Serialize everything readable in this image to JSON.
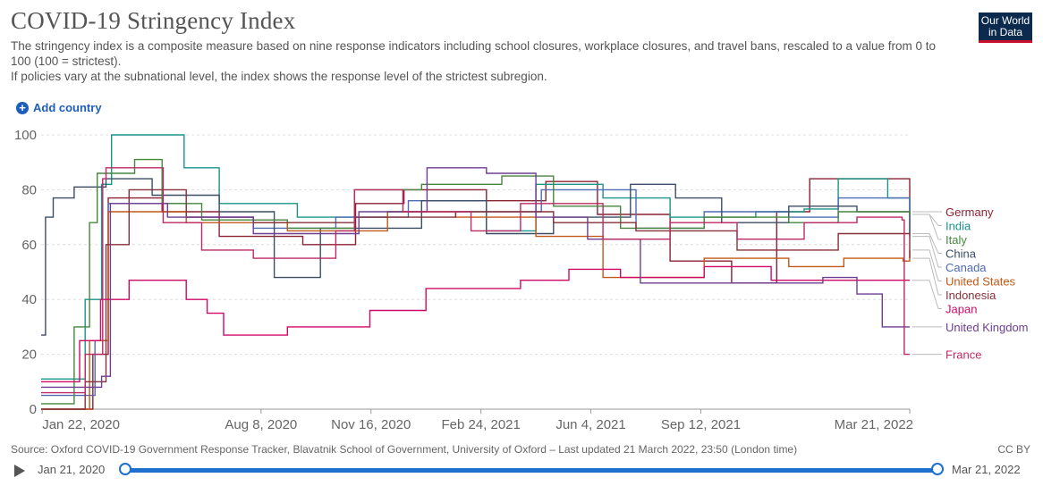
{
  "header": {
    "title": "COVID-19 Stringency Index",
    "subtitle_line1": "The stringency index is a composite measure based on nine response indicators including school closures, workplace closures, and travel bans, rescaled to a value from 0 to 100 (100 = strictest).",
    "subtitle_line2": "If policies vary at the subnational level, the index shows the response level of the strictest subregion.",
    "logo_line1": "Our World",
    "logo_line2": "in Data"
  },
  "controls": {
    "add_country_label": "Add country"
  },
  "footer": {
    "source": "Source: Oxford COVID-19 Government Response Tracker, Blavatnik School of Government, University of Oxford – Last updated 21 March 2022, 23:50 (London time)",
    "license": "CC BY"
  },
  "timeline": {
    "start_label": "Jan 21, 2020",
    "end_label": "Mar 21, 2022"
  },
  "chart_data": {
    "type": "line",
    "title": "COVID-19 Stringency Index",
    "xlabel": "",
    "ylabel": "",
    "x_range": [
      "2020-01-21",
      "2022-03-21"
    ],
    "ylim": [
      0,
      100
    ],
    "y_ticks": [
      0,
      20,
      40,
      60,
      80,
      100
    ],
    "x_ticks": [
      {
        "date": "2020-01-22",
        "label": "Jan 22, 2020"
      },
      {
        "date": "2020-08-08",
        "label": "Aug 8, 2020"
      },
      {
        "date": "2020-11-16",
        "label": "Nov 16, 2020"
      },
      {
        "date": "2021-02-24",
        "label": "Feb 24, 2021"
      },
      {
        "date": "2021-06-04",
        "label": "Jun 4, 2021"
      },
      {
        "date": "2021-09-12",
        "label": "Sep 12, 2021"
      },
      {
        "date": "2022-03-21",
        "label": "Mar 21, 2022"
      }
    ],
    "grid": "horizontal-dashed",
    "legend": "right-end-labels",
    "series": [
      {
        "name": "Germany",
        "color": "#8b2232",
        "points": [
          [
            "2020-01-21",
            0
          ],
          [
            "2020-03-08",
            20
          ],
          [
            "2020-03-22",
            77
          ],
          [
            "2020-05-10",
            72
          ],
          [
            "2020-07-01",
            63
          ],
          [
            "2020-09-15",
            60
          ],
          [
            "2020-11-02",
            75
          ],
          [
            "2020-12-16",
            80
          ],
          [
            "2021-03-01",
            76
          ],
          [
            "2021-04-24",
            83
          ],
          [
            "2021-06-10",
            71
          ],
          [
            "2021-08-15",
            54
          ],
          [
            "2021-10-10",
            46
          ],
          [
            "2021-11-20",
            72
          ],
          [
            "2021-12-20",
            84
          ],
          [
            "2022-03-01",
            84
          ],
          [
            "2022-03-21",
            72
          ]
        ]
      },
      {
        "name": "India",
        "color": "#1a9489",
        "points": [
          [
            "2020-01-21",
            11
          ],
          [
            "2020-03-01",
            40
          ],
          [
            "2020-03-16",
            82
          ],
          [
            "2020-03-25",
            100
          ],
          [
            "2020-05-01",
            100
          ],
          [
            "2020-05-30",
            88
          ],
          [
            "2020-07-01",
            75
          ],
          [
            "2020-09-10",
            70
          ],
          [
            "2020-12-01",
            72
          ],
          [
            "2021-03-01",
            65
          ],
          [
            "2021-04-15",
            82
          ],
          [
            "2021-06-15",
            77
          ],
          [
            "2021-08-15",
            70
          ],
          [
            "2021-11-01",
            72
          ],
          [
            "2021-12-15",
            73
          ],
          [
            "2022-01-15",
            84
          ],
          [
            "2022-03-01",
            77
          ],
          [
            "2022-03-21",
            71
          ]
        ]
      },
      {
        "name": "Canada",
        "color": "#4e6bb3",
        "points": [
          [
            "2020-01-21",
            5
          ],
          [
            "2020-03-10",
            25
          ],
          [
            "2020-03-22",
            75
          ],
          [
            "2020-06-01",
            70
          ],
          [
            "2020-08-01",
            66
          ],
          [
            "2020-10-15",
            70
          ],
          [
            "2020-12-20",
            76
          ],
          [
            "2021-03-01",
            72
          ],
          [
            "2021-04-20",
            80
          ],
          [
            "2021-07-15",
            66
          ],
          [
            "2021-09-15",
            72
          ],
          [
            "2021-12-01",
            70
          ],
          [
            "2022-01-15",
            77
          ],
          [
            "2022-03-21",
            63
          ]
        ]
      },
      {
        "name": "China",
        "color": "#3c4e66",
        "points": [
          [
            "2020-01-21",
            27
          ],
          [
            "2020-01-25",
            70
          ],
          [
            "2020-02-01",
            77
          ],
          [
            "2020-02-20",
            81
          ],
          [
            "2020-03-20",
            84
          ],
          [
            "2020-05-01",
            78
          ],
          [
            "2020-07-01",
            72
          ],
          [
            "2020-08-20",
            48
          ],
          [
            "2020-10-01",
            66
          ],
          [
            "2021-01-01",
            76
          ],
          [
            "2021-03-01",
            64
          ],
          [
            "2021-05-01",
            70
          ],
          [
            "2021-07-10",
            82
          ],
          [
            "2021-08-20",
            77
          ],
          [
            "2021-10-01",
            68
          ],
          [
            "2021-12-01",
            74
          ],
          [
            "2022-02-01",
            72
          ],
          [
            "2022-03-21",
            64
          ]
        ]
      },
      {
        "name": "Italy",
        "color": "#46873e",
        "points": [
          [
            "2020-01-21",
            2
          ],
          [
            "2020-02-20",
            30
          ],
          [
            "2020-03-05",
            68
          ],
          [
            "2020-03-12",
            86
          ],
          [
            "2020-04-15",
            91
          ],
          [
            "2020-05-10",
            75
          ],
          [
            "2020-06-15",
            69
          ],
          [
            "2020-09-01",
            66
          ],
          [
            "2020-11-01",
            80
          ],
          [
            "2021-01-01",
            82
          ],
          [
            "2021-03-15",
            85
          ],
          [
            "2021-05-01",
            74
          ],
          [
            "2021-07-01",
            66
          ],
          [
            "2021-09-15",
            70
          ],
          [
            "2021-12-01",
            68
          ],
          [
            "2022-01-15",
            72
          ],
          [
            "2022-03-21",
            71
          ]
        ]
      },
      {
        "name": "United States",
        "color": "#c05917",
        "points": [
          [
            "2020-01-21",
            0
          ],
          [
            "2020-03-05",
            25
          ],
          [
            "2020-03-22",
            72
          ],
          [
            "2020-06-01",
            68
          ],
          [
            "2020-09-01",
            65
          ],
          [
            "2020-12-01",
            72
          ],
          [
            "2021-02-01",
            70
          ],
          [
            "2021-04-15",
            63
          ],
          [
            "2021-06-15",
            48
          ],
          [
            "2021-09-15",
            55
          ],
          [
            "2021-12-01",
            52
          ],
          [
            "2022-01-20",
            55
          ],
          [
            "2022-03-15",
            54
          ],
          [
            "2022-03-21",
            58
          ]
        ]
      },
      {
        "name": "Indonesia",
        "color": "#883039",
        "points": [
          [
            "2020-01-21",
            0
          ],
          [
            "2020-03-01",
            10
          ],
          [
            "2020-03-20",
            60
          ],
          [
            "2020-04-10",
            80
          ],
          [
            "2020-06-01",
            70
          ],
          [
            "2020-08-01",
            68
          ],
          [
            "2020-11-01",
            70
          ],
          [
            "2021-02-01",
            72
          ],
          [
            "2021-05-01",
            68
          ],
          [
            "2021-07-15",
            65
          ],
          [
            "2021-10-15",
            58
          ],
          [
            "2022-01-15",
            64
          ],
          [
            "2022-03-21",
            55
          ]
        ]
      },
      {
        "name": "Japan",
        "color": "#cf0a66",
        "points": [
          [
            "2020-01-21",
            10
          ],
          [
            "2020-02-25",
            25
          ],
          [
            "2020-03-15",
            40
          ],
          [
            "2020-04-10",
            47
          ],
          [
            "2020-05-15",
            47
          ],
          [
            "2020-06-01",
            40
          ],
          [
            "2020-06-20",
            35
          ],
          [
            "2020-07-05",
            27
          ],
          [
            "2020-09-01",
            30
          ],
          [
            "2020-11-15",
            36
          ],
          [
            "2021-01-05",
            44
          ],
          [
            "2021-04-01",
            47
          ],
          [
            "2021-05-15",
            51
          ],
          [
            "2021-07-01",
            48
          ],
          [
            "2021-09-15",
            52
          ],
          [
            "2021-11-15",
            47
          ],
          [
            "2022-01-15",
            47
          ],
          [
            "2022-03-21",
            47
          ]
        ]
      },
      {
        "name": "United Kingdom",
        "color": "#6d3e91",
        "points": [
          [
            "2020-01-21",
            8
          ],
          [
            "2020-03-16",
            12
          ],
          [
            "2020-03-24",
            75
          ],
          [
            "2020-05-15",
            70
          ],
          [
            "2020-08-01",
            64
          ],
          [
            "2020-11-05",
            72
          ],
          [
            "2021-01-06",
            88
          ],
          [
            "2021-03-01",
            86
          ],
          [
            "2021-04-15",
            70
          ],
          [
            "2021-06-01",
            62
          ],
          [
            "2021-07-19",
            46
          ],
          [
            "2021-12-01",
            46
          ],
          [
            "2022-01-01",
            48
          ],
          [
            "2022-02-01",
            42
          ],
          [
            "2022-02-24",
            30
          ],
          [
            "2022-03-21",
            30
          ]
        ]
      },
      {
        "name": "France",
        "color": "#bc2a65",
        "points": [
          [
            "2020-01-21",
            6
          ],
          [
            "2020-03-01",
            20
          ],
          [
            "2020-03-17",
            84
          ],
          [
            "2020-03-20",
            88
          ],
          [
            "2020-05-11",
            68
          ],
          [
            "2020-06-15",
            58
          ],
          [
            "2020-08-01",
            55
          ],
          [
            "2020-10-15",
            65
          ],
          [
            "2020-11-01",
            80
          ],
          [
            "2020-12-15",
            72
          ],
          [
            "2021-02-15",
            65
          ],
          [
            "2021-04-01",
            75
          ],
          [
            "2021-06-15",
            62
          ],
          [
            "2021-08-15",
            68
          ],
          [
            "2021-10-15",
            62
          ],
          [
            "2021-12-15",
            68
          ],
          [
            "2022-02-01",
            70
          ],
          [
            "2022-03-14",
            69
          ],
          [
            "2022-03-16",
            20
          ],
          [
            "2022-03-21",
            20
          ]
        ]
      }
    ]
  }
}
